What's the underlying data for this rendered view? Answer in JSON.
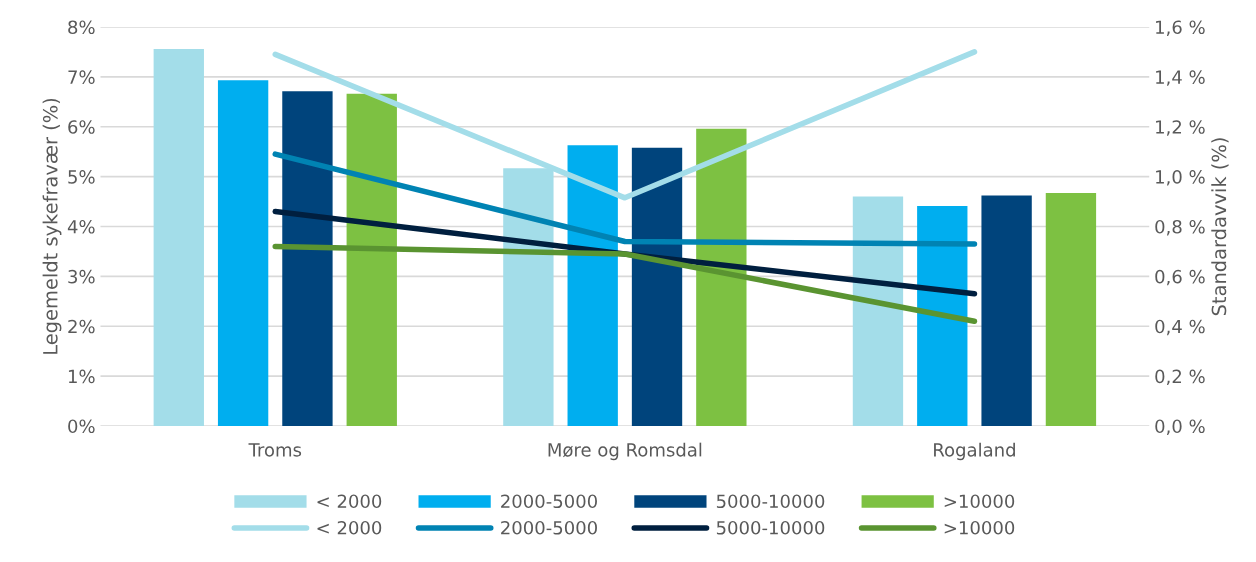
{
  "chart_data": {
    "type": "bar",
    "xlabel": null,
    "ylabel": "Legemeldt sykefravær (%)",
    "y2label": "Standardavvik (%)",
    "categories": [
      "Troms",
      "Møre og Romsdal",
      "Rogaland"
    ],
    "series": [
      {
        "name": "< 2000",
        "color": "#a3dde9",
        "values": [
          7.56,
          5.17,
          4.6
        ]
      },
      {
        "name": "2000-5000",
        "color": "#00aeef",
        "values": [
          6.93,
          5.63,
          4.41
        ]
      },
      {
        "name": "5000-10000",
        "color": "#00447c",
        "values": [
          6.71,
          5.58,
          4.62
        ]
      },
      {
        "name": ">10000",
        "color": "#7dc142",
        "values": [
          6.66,
          5.96,
          4.67
        ]
      },
      {
        "name": "< 2000",
        "type": "line",
        "axis": "y2",
        "color": "#a3dde9",
        "values": [
          1.49,
          0.915,
          1.5
        ]
      },
      {
        "name": "2000-5000",
        "type": "line",
        "axis": "y2",
        "color": "#0083b3",
        "values": [
          1.09,
          0.74,
          0.73
        ]
      },
      {
        "name": "5000-10000",
        "type": "line",
        "axis": "y2",
        "color": "#001f3f",
        "values": [
          0.86,
          0.69,
          0.53
        ]
      },
      {
        "name": ">10000",
        "type": "line",
        "axis": "y2",
        "color": "#5a9431",
        "values": [
          0.72,
          0.69,
          0.42
        ]
      }
    ],
    "ylim": [
      0,
      8
    ],
    "yticks": [
      {
        "value": 0,
        "label": "0%"
      },
      {
        "value": 1,
        "label": "1%"
      },
      {
        "value": 2,
        "label": "2%"
      },
      {
        "value": 3,
        "label": "3%"
      },
      {
        "value": 4,
        "label": "4%"
      },
      {
        "value": 5,
        "label": "5%"
      },
      {
        "value": 6,
        "label": "6%"
      },
      {
        "value": 7,
        "label": "7%"
      },
      {
        "value": 8,
        "label": "8%"
      }
    ],
    "y2lim": [
      0,
      1.6
    ],
    "y2ticks": [
      {
        "value": 0,
        "label": "0,0 %"
      },
      {
        "value": 0.2,
        "label": "0,2 %"
      },
      {
        "value": 0.4,
        "label": "0,4 %"
      },
      {
        "value": 0.6,
        "label": "0,6 %"
      },
      {
        "value": 0.8,
        "label": "0,8 %"
      },
      {
        "value": 1.0,
        "label": "1,0 %"
      },
      {
        "value": 1.2,
        "label": "1,2 %"
      },
      {
        "value": 1.4,
        "label": "1,4 %"
      },
      {
        "value": 1.6,
        "label": "1,6 %"
      }
    ],
    "grid": "y",
    "legend": "bottom",
    "marker": "none",
    "line_style": "solid"
  }
}
